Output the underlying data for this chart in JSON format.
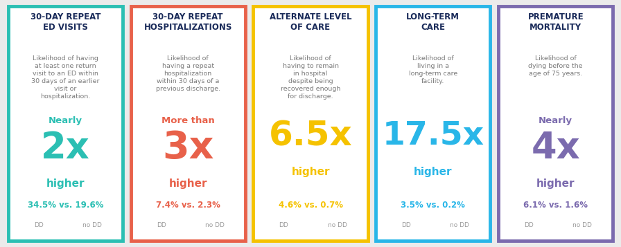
{
  "panels": [
    {
      "title": "30-DAY REPEAT\nED VISITS",
      "description": "Likelihood of having\nat least one return\nvisit to an ED within\n30 days of an earlier\nvisit or\nhospitalization.",
      "prefix": "Nearly",
      "multiplier": "2",
      "suffix": "higher",
      "stats": "34.5% vs. 19.6%",
      "dd_label": "DD",
      "no_dd_label": "no DD",
      "border_color": "#2BBFB3",
      "accent_color": "#2BBFB3",
      "mult_fontsize": 38
    },
    {
      "title": "30-DAY REPEAT\nHOSPITALIZATIONS",
      "description": "Likelihood of\nhaving a repeat\nhospitalization\nwithin 30 days of a\nprevious discharge.",
      "prefix": "More than",
      "multiplier": "3",
      "suffix": "higher",
      "stats": "7.4% vs. 2.3%",
      "dd_label": "DD",
      "no_dd_label": "no DD",
      "border_color": "#E8614A",
      "accent_color": "#E8614A",
      "mult_fontsize": 40
    },
    {
      "title": "ALTERNATE LEVEL\nOF CARE",
      "description": "Likelihood of\nhaving to remain\nin hospital\ndespite being\nrecovered enough\nfor discharge.",
      "prefix": "",
      "multiplier": "6.5",
      "suffix": "higher",
      "stats": "4.6% vs. 0.7%",
      "dd_label": "DD",
      "no_dd_label": "no DD",
      "border_color": "#F5C200",
      "accent_color": "#F5C200",
      "mult_fontsize": 36
    },
    {
      "title": "LONG-TERM\nCARE",
      "description": "Likelihood of\nliving in a\nlong-term care\nfacility.",
      "prefix": "",
      "multiplier": "17.5",
      "suffix": "higher",
      "stats": "3.5% vs. 0.2%",
      "dd_label": "DD",
      "no_dd_label": "no DD",
      "border_color": "#29B6E8",
      "accent_color": "#29B6E8",
      "mult_fontsize": 34
    },
    {
      "title": "PREMATURE\nMORTALITY",
      "description": "Likelihood of\ndying before the\nage of 75 years.",
      "prefix": "Nearly",
      "multiplier": "4",
      "suffix": "higher",
      "stats": "6.1% vs. 1.6%",
      "dd_label": "DD",
      "no_dd_label": "no DD",
      "border_color": "#7B6BAE",
      "accent_color": "#7B6BAE",
      "mult_fontsize": 38
    }
  ],
  "bg_color": "#EBEBEB",
  "title_color": "#1A2B5A",
  "text_color": "#7A7A7A",
  "label_color": "#9A9A9A",
  "stats_label_fontsize": 8.5,
  "prefix_fontsize": 9.5,
  "suffix_fontsize": 11,
  "desc_fontsize": 6.8,
  "title_fontsize": 8.5,
  "border_lw": 3.5
}
